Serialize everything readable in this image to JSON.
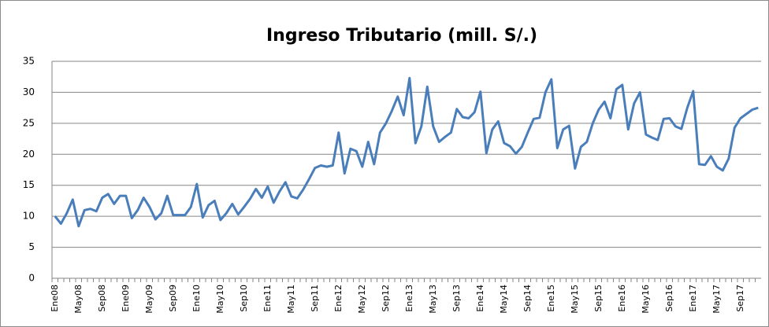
{
  "chart_data": {
    "type": "line",
    "title": "Ingreso Tributario (mill. S/.)",
    "categories": [
      "Ene08",
      null,
      null,
      null,
      "May08",
      null,
      null,
      null,
      "Sep08",
      null,
      null,
      null,
      "Ene09",
      null,
      null,
      null,
      "May09",
      null,
      null,
      null,
      "Sep09",
      null,
      null,
      null,
      "Ene10",
      null,
      null,
      null,
      "May10",
      null,
      null,
      null,
      "Sep10",
      null,
      null,
      null,
      "Ene11",
      null,
      null,
      null,
      "May11",
      null,
      null,
      null,
      "Sep11",
      null,
      null,
      null,
      "Ene12",
      null,
      null,
      null,
      "May12",
      null,
      null,
      null,
      "Sep12",
      null,
      null,
      null,
      "Ene13",
      null,
      null,
      null,
      "May13",
      null,
      null,
      null,
      "Sep13",
      null,
      null,
      null,
      "Ene14",
      null,
      null,
      null,
      "May14",
      null,
      null,
      null,
      "Sep14",
      null,
      null,
      null,
      "Ene15",
      null,
      null,
      null,
      "May15",
      null,
      null,
      null,
      "Sep15",
      null,
      null,
      null,
      "Ene16",
      null,
      null,
      null,
      "May16",
      null,
      null,
      null,
      "Sep16",
      null,
      null,
      null,
      "Ene17",
      null,
      null,
      null,
      "May17",
      null,
      null,
      null,
      "Sep17",
      null,
      null,
      null
    ],
    "series": [
      {
        "color": "#4a7ebb",
        "values": [
          10,
          8.8,
          10.5,
          12.7,
          8.4,
          11,
          11.2,
          10.8,
          13,
          13.6,
          12,
          13.3,
          13.3,
          9.7,
          11,
          13,
          11.5,
          9.5,
          10.5,
          13.3,
          10.2,
          10.2,
          10.2,
          11.5,
          15.2,
          9.8,
          11.8,
          12.5,
          9.4,
          10.5,
          12,
          10.3,
          11.5,
          12.8,
          14.4,
          13,
          14.8,
          12.2,
          14,
          15.5,
          13.2,
          12.9,
          14.3,
          16,
          17.8,
          18.2,
          18,
          18.2,
          23.5,
          16.9,
          20.9,
          20.5,
          18,
          22,
          18.4,
          23.5,
          25,
          27,
          29.3,
          26.3,
          32.3,
          21.8,
          24.5,
          30.9,
          24.5,
          22,
          22.8,
          23.5,
          27.3,
          26,
          25.8,
          26.8,
          30.1,
          20.2,
          24,
          25.3,
          21.8,
          21.3,
          20.1,
          21.2,
          23.5,
          25.7,
          25.9,
          30,
          32.1,
          21,
          24,
          24.6,
          17.7,
          21.2,
          22,
          25,
          27.2,
          28.5,
          25.8,
          30.5,
          31.2,
          24,
          28.2,
          30,
          23.2,
          22.7,
          22.3,
          25.7,
          25.8,
          24.5,
          24.1,
          27.5,
          30.2,
          18.4,
          18.3,
          19.7,
          18,
          17.4,
          19.3,
          24.3,
          25.8,
          26.5,
          27.2,
          27.5
        ]
      }
    ],
    "ylim": [
      0,
      35
    ],
    "yticks": [
      0,
      5,
      10,
      15,
      20,
      25,
      30,
      35
    ],
    "grid": true
  }
}
